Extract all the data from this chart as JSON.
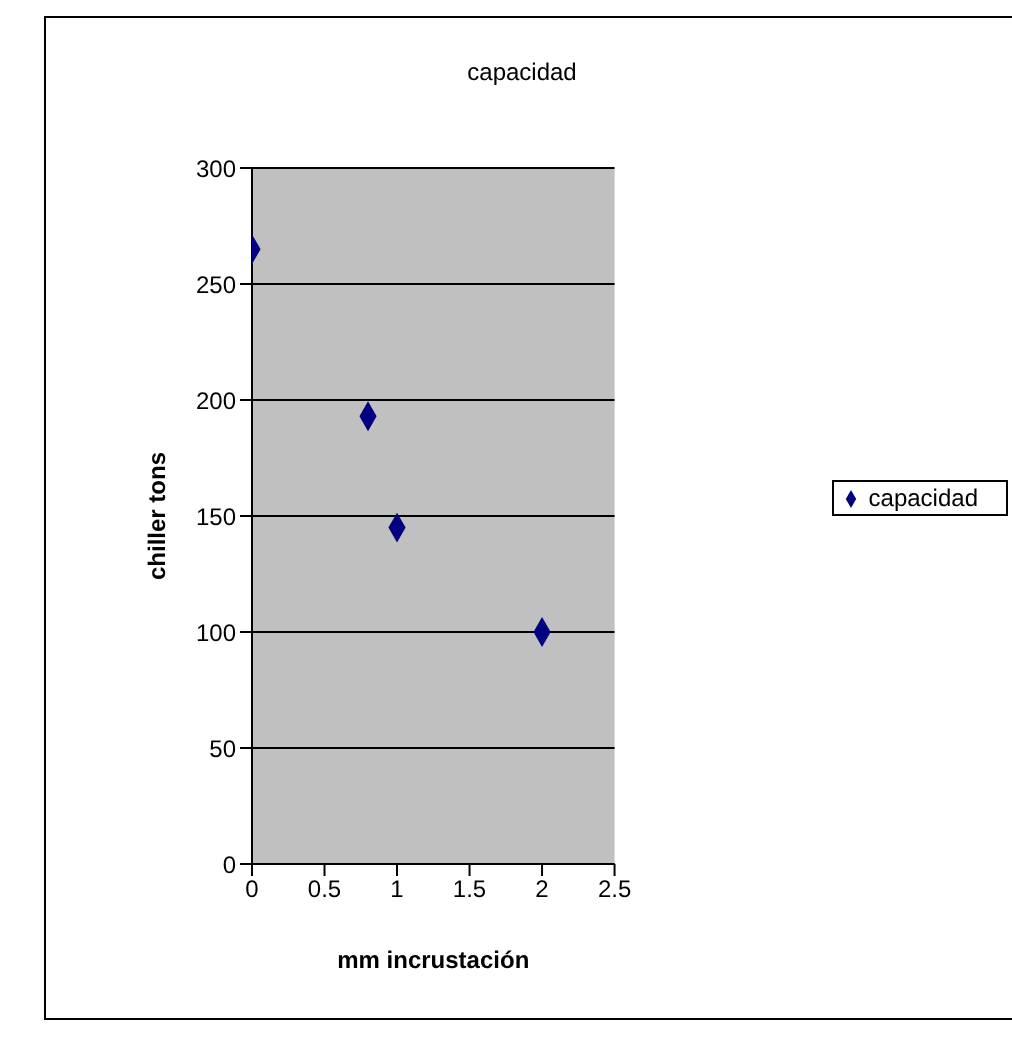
{
  "chart_data": {
    "type": "scatter",
    "title": "capacidad",
    "xlabel": "mm incrustación",
    "ylabel": "chiller tons",
    "x": [
      0,
      0.8,
      1,
      2
    ],
    "series": [
      {
        "name": "capacidad",
        "color": "#000080",
        "values": [
          265,
          193,
          145,
          100
        ]
      }
    ],
    "xlim": [
      0,
      2.5
    ],
    "xticks": [
      0,
      0.5,
      1,
      1.5,
      2,
      2.5
    ],
    "ylim": [
      0,
      300
    ],
    "yticks": [
      0,
      50,
      100,
      150,
      200,
      250,
      300
    ],
    "grid": "y",
    "legend": "right",
    "marker": "diamond"
  }
}
